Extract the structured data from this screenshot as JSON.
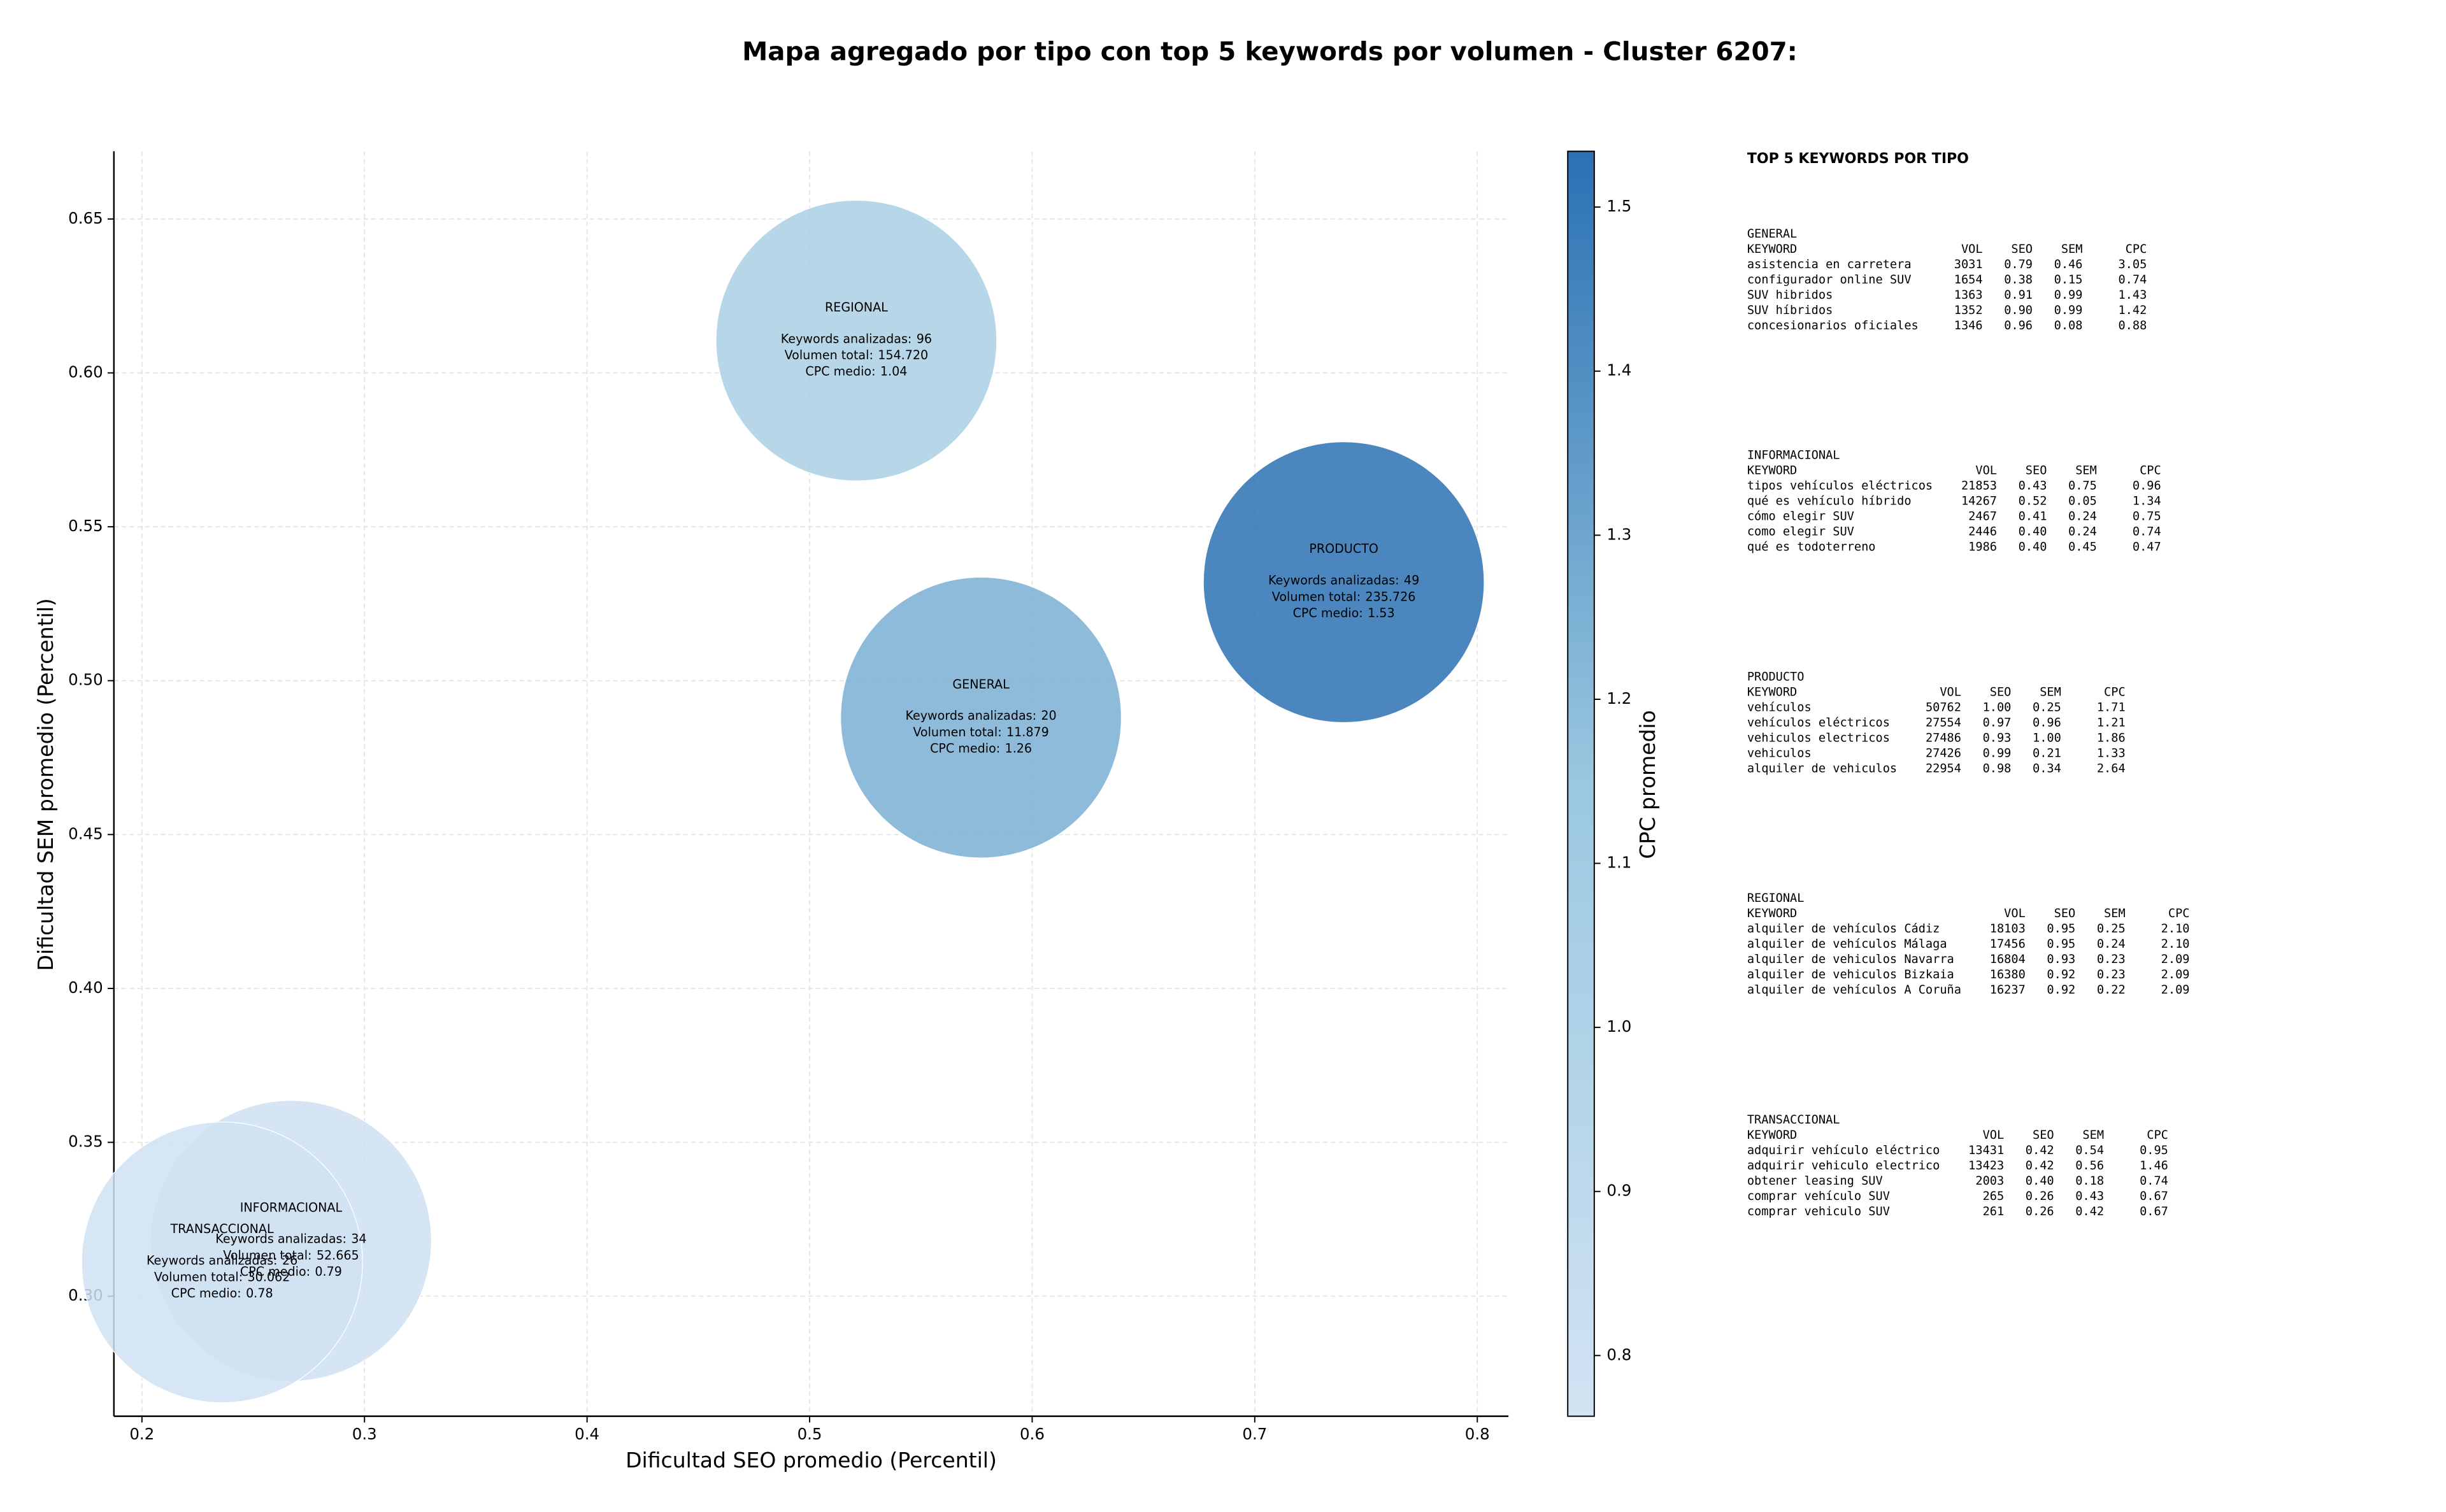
{
  "chart_data": {
    "type": "bubble",
    "title": "Mapa agregado por tipo con top 5 keywords por volumen - Cluster 6207:",
    "xlabel": "Dificultad SEO promedio (Percentil)",
    "ylabel": "Dificultad SEM promedio (Percentil)",
    "colorbar_label": "CPC promedio",
    "categories": [
      "GENERAL",
      "INFORMACIONAL",
      "PRODUCTO",
      "REGIONAL",
      "TRANSACCIONAL"
    ],
    "x": [
      0.577,
      0.267,
      0.74,
      0.521,
      0.236
    ],
    "y": [
      0.488,
      0.318,
      0.532,
      0.6105,
      0.311
    ],
    "keywords_label": "Keywords analizadas:",
    "keywords": [
      20,
      34,
      49,
      96,
      26
    ],
    "volume_label": "Volumen total:",
    "volume": [
      11879,
      52665,
      235726,
      154720,
      30062
    ],
    "volume_labels": [
      "11.879",
      "52.665",
      "235.726",
      "154.720",
      "30.062"
    ],
    "cpc_label": "CPC medio:",
    "cpc": [
      1.26,
      0.79,
      1.53,
      1.04,
      0.78
    ],
    "cmap": [
      "#d2e3f3",
      "#9ac8e0",
      "#2a71b3"
    ],
    "clim": [
      0.763,
      1.534
    ],
    "cticks": [
      0.8,
      0.9,
      {
        "value": 1,
        "label": "1.0"
      },
      1.1,
      1.2,
      1.3,
      1.4,
      1.5
    ],
    "xlim": [
      0.1874,
      0.814
    ],
    "xticks": [
      0.2,
      0.3,
      0.4,
      0.5,
      0.6,
      0.7,
      0.8
    ],
    "ylim": [
      0.261,
      0.672
    ],
    "yticks": [
      {
        "value": 0.3,
        "label": "0.30"
      },
      0.35,
      {
        "value": 0.4,
        "label": "0.40"
      },
      0.45,
      {
        "value": 0.5,
        "label": "0.50"
      },
      0.55,
      {
        "value": 0.6,
        "label": "0.60"
      },
      0.65
    ],
    "grid": true
  },
  "panel": {
    "title": "TOP 5 KEYWORDS POR TIPO",
    "header": [
      "KEYWORD",
      "VOL",
      "SEO",
      "SEM",
      "CPC"
    ],
    "groups": [
      {
        "name": "GENERAL",
        "rows": [
          [
            "asistencia en carretera",
            "3031",
            "0.79",
            "0.46",
            "3.05"
          ],
          [
            "configurador online SUV",
            "1654",
            "0.38",
            "0.15",
            "0.74"
          ],
          [
            "SUV hibridos",
            "1363",
            "0.91",
            "0.99",
            "1.43"
          ],
          [
            "SUV híbridos",
            "1352",
            "0.90",
            "0.99",
            "1.42"
          ],
          [
            "concesionarios oficiales",
            "1346",
            "0.96",
            "0.08",
            "0.88"
          ]
        ]
      },
      {
        "name": "INFORMACIONAL",
        "rows": [
          [
            "tipos vehículos eléctricos",
            "21853",
            "0.43",
            "0.75",
            "0.96"
          ],
          [
            "qué es vehículo híbrido",
            "14267",
            "0.52",
            "0.05",
            "1.34"
          ],
          [
            "cómo elegir SUV",
            "2467",
            "0.41",
            "0.24",
            "0.75"
          ],
          [
            "como elegir SUV",
            "2446",
            "0.40",
            "0.24",
            "0.74"
          ],
          [
            "qué es todoterreno",
            "1986",
            "0.40",
            "0.45",
            "0.47"
          ]
        ]
      },
      {
        "name": "PRODUCTO",
        "rows": [
          [
            "vehículos",
            "50762",
            "1.00",
            "0.25",
            "1.71"
          ],
          [
            "vehículos eléctricos",
            "27554",
            "0.97",
            "0.96",
            "1.21"
          ],
          [
            "vehiculos electricos",
            "27486",
            "0.93",
            "1.00",
            "1.86"
          ],
          [
            "vehiculos",
            "27426",
            "0.99",
            "0.21",
            "1.33"
          ],
          [
            "alquiler de vehiculos",
            "22954",
            "0.98",
            "0.34",
            "2.64"
          ]
        ]
      },
      {
        "name": "REGIONAL",
        "rows": [
          [
            "alquiler de vehículos Cádiz",
            "18103",
            "0.95",
            "0.25",
            "2.10"
          ],
          [
            "alquiler de vehículos Málaga",
            "17456",
            "0.95",
            "0.24",
            "2.10"
          ],
          [
            "alquiler de vehiculos Navarra",
            "16804",
            "0.93",
            "0.23",
            "2.09"
          ],
          [
            "alquiler de vehiculos Bizkaia",
            "16380",
            "0.92",
            "0.23",
            "2.09"
          ],
          [
            "alquiler de vehículos A Coruña",
            "16237",
            "0.92",
            "0.22",
            "2.09"
          ]
        ]
      },
      {
        "name": "TRANSACCIONAL",
        "rows": [
          [
            "adquirir vehículo eléctrico",
            "13431",
            "0.42",
            "0.54",
            "0.95"
          ],
          [
            "adquirir vehiculo electrico",
            "13423",
            "0.42",
            "0.56",
            "1.46"
          ],
          [
            "obtener leasing SUV",
            "2003",
            "0.40",
            "0.18",
            "0.74"
          ],
          [
            "comprar vehículo SUV",
            "265",
            "0.26",
            "0.43",
            "0.67"
          ],
          [
            "comprar vehiculo SUV",
            "261",
            "0.26",
            "0.42",
            "0.67"
          ]
        ]
      }
    ]
  }
}
